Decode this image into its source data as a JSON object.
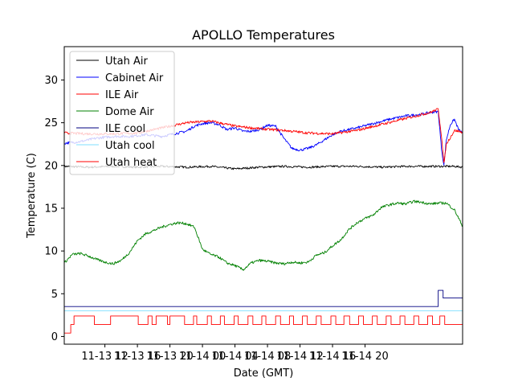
{
  "chart_data": {
    "type": "line",
    "title": "APOLLO Temperatures",
    "xlabel": "Date (GMT)",
    "ylabel": "Temperature (C)",
    "ylim": [
      -0.9,
      33.9
    ],
    "yticks": [
      0,
      5,
      10,
      15,
      20,
      25,
      30
    ],
    "xlim": [
      0,
      49
    ],
    "xticks": [
      {
        "pos": 5,
        "label": "11-13 12"
      },
      {
        "pos": 9,
        "label": "11-13 16"
      },
      {
        "pos": 13,
        "label": "11-13 20"
      },
      {
        "pos": 17,
        "label": "11-14 00"
      },
      {
        "pos": 21,
        "label": "11-14 04"
      },
      {
        "pos": 25,
        "label": "11-14 08"
      },
      {
        "pos": 29,
        "label": "11-14 12"
      },
      {
        "pos": 33,
        "label": "11-14 16"
      },
      {
        "pos": 37,
        "label": "11-14 20"
      }
    ],
    "legend_position": "top-left",
    "series": [
      {
        "name": "Utah Air",
        "color": "#000000",
        "step": false,
        "x": [
          0,
          3,
          6,
          9,
          12,
          15,
          18,
          21,
          24,
          27,
          30,
          33,
          36,
          39,
          42,
          45,
          48,
          49
        ],
        "values": [
          19.9,
          19.8,
          19.9,
          19.8,
          19.9,
          19.8,
          19.9,
          19.6,
          19.8,
          19.9,
          19.8,
          19.9,
          19.9,
          19.8,
          19.9,
          19.9,
          19.9,
          19.8
        ]
      },
      {
        "name": "Cabinet Air",
        "color": "#0000ff",
        "step": false,
        "x": [
          0,
          2,
          4,
          6,
          8,
          10,
          12,
          13,
          14,
          15,
          16,
          17,
          18,
          19,
          20,
          21,
          22,
          23,
          24,
          25,
          26,
          27,
          28,
          29,
          30,
          31,
          32,
          33,
          34,
          36,
          38,
          40,
          42,
          44,
          45,
          46,
          46.4,
          46.7,
          47,
          47.5,
          48,
          48.5,
          49
        ],
        "values": [
          22.6,
          22.8,
          23.2,
          23.4,
          23.4,
          23.6,
          23.4,
          23.6,
          23.8,
          24.0,
          24.6,
          24.9,
          25.0,
          24.8,
          24.2,
          24.4,
          24.0,
          24.0,
          24.2,
          24.7,
          24.6,
          23.2,
          22.0,
          21.8,
          22.0,
          22.4,
          23.0,
          23.6,
          24.0,
          24.4,
          24.9,
          25.4,
          25.8,
          26.0,
          26.2,
          26.3,
          22.0,
          20.0,
          23.0,
          24.8,
          25.4,
          24.2,
          23.8
        ]
      },
      {
        "name": "ILE Air",
        "color": "#ff0000",
        "step": false,
        "x": [
          0,
          3,
          6,
          9,
          12,
          15,
          18,
          21,
          24,
          27,
          30,
          33,
          36,
          39,
          42,
          45,
          46,
          46.4,
          46.7,
          47,
          48,
          49
        ],
        "values": [
          23.8,
          23.7,
          23.7,
          23.8,
          24.4,
          25.0,
          25.2,
          24.6,
          24.3,
          24.1,
          23.8,
          23.7,
          24.1,
          24.8,
          25.5,
          26.2,
          26.6,
          23.5,
          20.2,
          22.5,
          24.1,
          23.9
        ]
      },
      {
        "name": "Dome Air",
        "color": "#008000",
        "step": false,
        "x": [
          0,
          1,
          2,
          3,
          4,
          5,
          6,
          7,
          8,
          9,
          10,
          11,
          12,
          13,
          14,
          15,
          16,
          17,
          18,
          19,
          20,
          21,
          22,
          23,
          24,
          25,
          26,
          27,
          28,
          29,
          30,
          31,
          32,
          33,
          34,
          35,
          36,
          37,
          38,
          39,
          40,
          41,
          42,
          43,
          44,
          45,
          46,
          47,
          48,
          49
        ],
        "values": [
          8.6,
          9.6,
          9.7,
          9.4,
          9.0,
          8.7,
          8.5,
          8.9,
          9.8,
          11.2,
          12.0,
          12.4,
          12.8,
          13.1,
          13.3,
          13.2,
          12.8,
          10.2,
          9.6,
          9.3,
          8.6,
          8.3,
          7.8,
          8.6,
          8.9,
          8.8,
          8.6,
          8.5,
          8.7,
          8.6,
          8.7,
          9.5,
          9.8,
          10.6,
          11.3,
          12.5,
          13.3,
          13.8,
          14.2,
          15.1,
          15.4,
          15.6,
          15.5,
          15.8,
          15.7,
          15.5,
          15.6,
          15.6,
          14.8,
          12.9
        ]
      },
      {
        "name": "ILE cool",
        "color": "#000080",
        "step": true,
        "x": [
          0,
          46,
          46.6,
          47.4,
          49
        ],
        "values": [
          3.5,
          5.4,
          4.5,
          4.5,
          4.5
        ]
      },
      {
        "name": "Utah cool",
        "color": "#7fdfff",
        "step": true,
        "x": [
          0,
          49
        ],
        "values": [
          3.0,
          3.0
        ]
      },
      {
        "name": "Utah heat",
        "color": "#ff0000",
        "step": true,
        "x": [
          0,
          0.8,
          1.2,
          3.2,
          3.7,
          4.8,
          5.7,
          8.7,
          9.1,
          10.3,
          10.8,
          11.3,
          11.7,
          12.7,
          13.0,
          14.2,
          14.8,
          15.9,
          16.3,
          17.6,
          18.1,
          19.2,
          19.7,
          20.9,
          21.4,
          22.6,
          23.2,
          24.3,
          24.8,
          26.0,
          26.6,
          27.7,
          28.2,
          29.3,
          29.9,
          31.0,
          31.6,
          32.8,
          33.4,
          34.4,
          35.1,
          36.2,
          36.8,
          37.9,
          38.5,
          39.6,
          40.2,
          41.3,
          41.9,
          43.0,
          43.6,
          44.7,
          45.3,
          46.2,
          46.8,
          49
        ],
        "values": [
          0.4,
          1.4,
          2.4,
          2.4,
          1.4,
          1.4,
          2.4,
          2.4,
          1.4,
          2.4,
          1.4,
          2.4,
          2.4,
          1.4,
          2.4,
          2.4,
          1.4,
          2.4,
          1.4,
          2.4,
          1.4,
          2.4,
          1.4,
          2.4,
          1.4,
          2.4,
          1.4,
          2.4,
          1.4,
          2.4,
          1.4,
          2.4,
          1.4,
          2.4,
          1.4,
          2.4,
          1.4,
          2.4,
          1.4,
          2.4,
          1.4,
          2.4,
          1.4,
          2.4,
          1.4,
          2.4,
          1.4,
          2.4,
          1.4,
          2.4,
          1.4,
          2.4,
          1.4,
          2.4,
          1.4,
          1.4
        ]
      }
    ]
  }
}
